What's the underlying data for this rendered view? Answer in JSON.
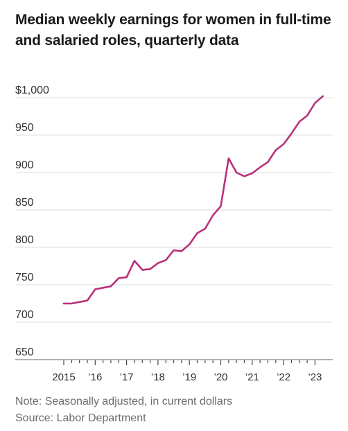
{
  "chart_data": {
    "type": "line",
    "title": "Median weekly earnings for women in full-time and salaried roles, quarterly data",
    "subtitle": "",
    "xlabel": "",
    "ylabel": "",
    "ylim": [
      650,
      1000
    ],
    "y_ticks": [
      650,
      700,
      750,
      800,
      850,
      900,
      950,
      1000
    ],
    "y_tick_labels": [
      "650",
      "700",
      "750",
      "800",
      "850",
      "900",
      "950",
      "$1,000"
    ],
    "x_ticks": [
      "2015",
      "’16",
      "’17",
      "’18",
      "’19",
      "’20",
      "’21",
      "’22",
      "’23"
    ],
    "x_minor_ticks_per_year": 4,
    "grid": true,
    "legend": "none",
    "line_color": "#b9317a",
    "x": [
      "2015 Q1",
      "2015 Q2",
      "2015 Q3",
      "2015 Q4",
      "2016 Q1",
      "2016 Q2",
      "2016 Q3",
      "2016 Q4",
      "2017 Q1",
      "2017 Q2",
      "2017 Q3",
      "2017 Q4",
      "2018 Q1",
      "2018 Q2",
      "2018 Q3",
      "2018 Q4",
      "2019 Q1",
      "2019 Q2",
      "2019 Q3",
      "2019 Q4",
      "2020 Q1",
      "2020 Q2",
      "2020 Q3",
      "2020 Q4",
      "2021 Q1",
      "2021 Q2",
      "2021 Q3",
      "2021 Q4",
      "2022 Q1",
      "2022 Q2",
      "2022 Q3",
      "2022 Q4",
      "2023 Q1",
      "2023 Q2"
    ],
    "series": [
      {
        "values": [
          725,
          725,
          727,
          729,
          744,
          746,
          748,
          759,
          760,
          782,
          770,
          771,
          779,
          783,
          796,
          795,
          804,
          819,
          825,
          843,
          855,
          919,
          900,
          895,
          899,
          907,
          914,
          930,
          938,
          952,
          968,
          976,
          993,
          1002
        ]
      }
    ],
    "notes": [
      "Note: Seasonally adjusted, in current dollars",
      "Source: Labor Department"
    ]
  }
}
